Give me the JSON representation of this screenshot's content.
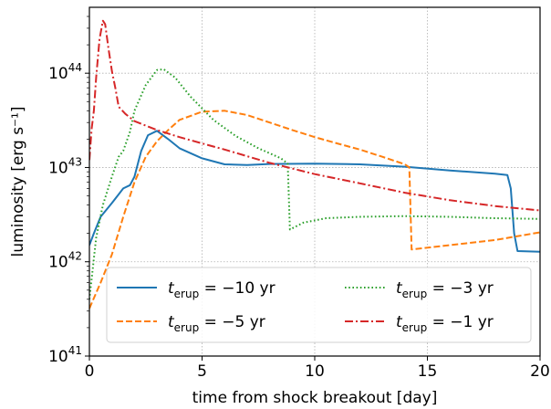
{
  "chart_data": {
    "type": "line",
    "xlabel": "time from shock breakout [day]",
    "ylabel": "luminosity [erg s⁻¹]",
    "xlim": [
      0,
      20
    ],
    "ylim": [
      1e+41,
      5e+44
    ],
    "yscale": "log",
    "grid": true,
    "legend_position": "lower-center",
    "x_ticks": [
      0,
      5,
      10,
      15,
      20
    ],
    "y_ticks": [
      1e+41,
      1e+42,
      1e+43,
      1e+44
    ],
    "x_tick_labels": [
      "0",
      "5",
      "10",
      "15",
      "20"
    ],
    "y_tick_labels": [
      {
        "base": "10",
        "exp": "41"
      },
      {
        "base": "10",
        "exp": "42"
      },
      {
        "base": "10",
        "exp": "43"
      },
      {
        "base": "10",
        "exp": "44"
      }
    ],
    "series": [
      {
        "name": "t_erup = −10 yr",
        "label_pre": "t",
        "label_sub": "erup",
        "label_post": " = −10 yr",
        "color": "#1f77b4",
        "dash": "solid",
        "points": [
          [
            0,
            1.5e+42
          ],
          [
            0.2,
            2e+42
          ],
          [
            0.5,
            3e+42
          ],
          [
            1.0,
            4.2e+42
          ],
          [
            1.5,
            6e+42
          ],
          [
            1.8,
            6.5e+42
          ],
          [
            2.0,
            8e+42
          ],
          [
            2.3,
            1.5e+43
          ],
          [
            2.6,
            2.2e+43
          ],
          [
            3.0,
            2.45e+43
          ],
          [
            3.5,
            2e+43
          ],
          [
            4.0,
            1.6e+43
          ],
          [
            5.0,
            1.25e+43
          ],
          [
            6.0,
            1.08e+43
          ],
          [
            7.0,
            1.06e+43
          ],
          [
            8.0,
            1.09e+43
          ],
          [
            10.0,
            1.1e+43
          ],
          [
            12.0,
            1.08e+43
          ],
          [
            14.0,
            1.02e+43
          ],
          [
            16.0,
            9.3e+42
          ],
          [
            18.0,
            8.6e+42
          ],
          [
            18.55,
            8.3e+42
          ],
          [
            18.7,
            6e+42
          ],
          [
            18.85,
            2e+42
          ],
          [
            19.0,
            1.3e+42
          ],
          [
            20.0,
            1.28e+42
          ]
        ]
      },
      {
        "name": "t_erup = −5 yr",
        "label_pre": "t",
        "label_sub": "erup",
        "label_post": " = −5 yr",
        "color": "#ff7f0e",
        "dash": "dashed",
        "points": [
          [
            0,
            3.2e+41
          ],
          [
            0.5,
            6e+41
          ],
          [
            1.0,
            1.2e+42
          ],
          [
            1.5,
            3e+42
          ],
          [
            2.0,
            7e+42
          ],
          [
            2.5,
            1.3e+43
          ],
          [
            3.0,
            1.9e+43
          ],
          [
            3.5,
            2.5e+43
          ],
          [
            4.0,
            3.2e+43
          ],
          [
            5.0,
            3.9e+43
          ],
          [
            6.0,
            4e+43
          ],
          [
            7.0,
            3.6e+43
          ],
          [
            8.0,
            3e+43
          ],
          [
            9.0,
            2.5e+43
          ],
          [
            10.0,
            2.1e+43
          ],
          [
            11.0,
            1.8e+43
          ],
          [
            12.0,
            1.55e+43
          ],
          [
            13.0,
            1.3e+43
          ],
          [
            14.0,
            1.08e+43
          ],
          [
            14.2,
            1e+43
          ],
          [
            14.3,
            1.35e+42
          ],
          [
            16.0,
            1.5e+42
          ],
          [
            18.0,
            1.7e+42
          ],
          [
            20.0,
            2.05e+42
          ]
        ]
      },
      {
        "name": "t_erup = −3 yr",
        "label_pre": "t",
        "label_sub": "erup",
        "label_post": " = −3 yr",
        "color": "#2ca02c",
        "dash": "dotted",
        "points": [
          [
            0,
            4e+41
          ],
          [
            0.3,
            1.8e+42
          ],
          [
            0.6,
            4e+42
          ],
          [
            1.0,
            8e+42
          ],
          [
            1.3,
            1.3e+43
          ],
          [
            1.5,
            1.5e+43
          ],
          [
            1.8,
            2.4e+43
          ],
          [
            2.0,
            4e+43
          ],
          [
            2.5,
            7.5e+43
          ],
          [
            3.0,
            1.08e+44
          ],
          [
            3.3,
            1.1e+44
          ],
          [
            3.8,
            9e+43
          ],
          [
            4.5,
            5.6e+43
          ],
          [
            5.5,
            3.2e+43
          ],
          [
            6.5,
            2.15e+43
          ],
          [
            7.5,
            1.6e+43
          ],
          [
            8.5,
            1.25e+43
          ],
          [
            8.8,
            1.1e+43
          ],
          [
            8.9,
            2.2e+42
          ],
          [
            9.5,
            2.6e+42
          ],
          [
            10.5,
            2.9e+42
          ],
          [
            12.0,
            3e+42
          ],
          [
            14.0,
            3.05e+42
          ],
          [
            16.0,
            3e+42
          ],
          [
            18.0,
            2.9e+42
          ],
          [
            20.0,
            2.85e+42
          ]
        ]
      },
      {
        "name": "t_erup = −1 yr",
        "label_pre": "t",
        "label_sub": "erup",
        "label_post": " = −1 yr",
        "color": "#d62728",
        "dash": "dashdot",
        "points": [
          [
            0,
            1.2e+43
          ],
          [
            0.1,
            2.6e+43
          ],
          [
            0.2,
            4e+43
          ],
          [
            0.3,
            9e+43
          ],
          [
            0.45,
            2.3e+44
          ],
          [
            0.6,
            3.6e+44
          ],
          [
            0.7,
            3.3e+44
          ],
          [
            0.85,
            1.8e+44
          ],
          [
            1.0,
            1.05e+44
          ],
          [
            1.15,
            7e+43
          ],
          [
            1.3,
            4.4e+43
          ],
          [
            1.6,
            3.7e+43
          ],
          [
            2.0,
            3.1e+43
          ],
          [
            3.0,
            2.5e+43
          ],
          [
            4.0,
            2.1e+43
          ],
          [
            5.0,
            1.8e+43
          ],
          [
            6.0,
            1.55e+43
          ],
          [
            8.0,
            1.12e+43
          ],
          [
            10.0,
            8.5e+42
          ],
          [
            12.0,
            6.8e+42
          ],
          [
            14.0,
            5.4e+42
          ],
          [
            16.0,
            4.5e+42
          ],
          [
            18.0,
            3.9e+42
          ],
          [
            20.0,
            3.5e+42
          ]
        ]
      }
    ]
  }
}
